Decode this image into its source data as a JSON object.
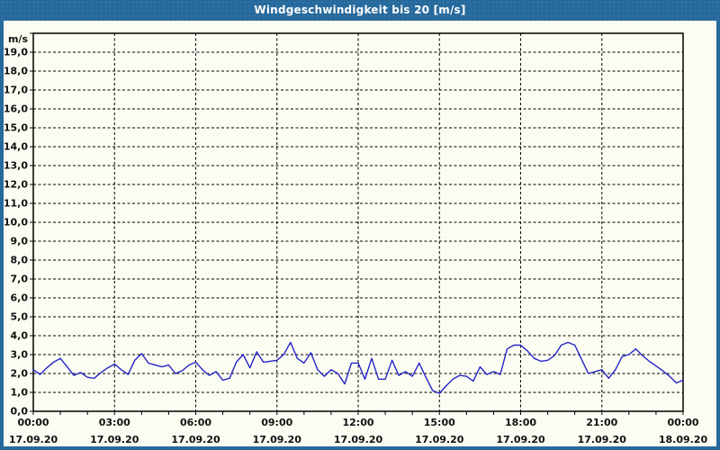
{
  "window": {
    "title": "Windgeschwindigkeit bis 20 [m/s]"
  },
  "colors": {
    "accent_blue": "#26699c",
    "line_blue": "#2525c8",
    "grid_black": "#000000",
    "background": "#fbfcf2",
    "title_text": "#ffffff"
  },
  "chart_data": {
    "type": "line",
    "title": "Windgeschwindigkeit bis 20 [m/s]",
    "ylabel_unit": "m/s",
    "ylim": [
      0,
      20
    ],
    "ytick_step": 1,
    "ytick_labels": [
      "0,0",
      "1,0",
      "2,0",
      "3,0",
      "4,0",
      "5,0",
      "6,0",
      "7,0",
      "8,0",
      "9,0",
      "10,0",
      "11,0",
      "12,0",
      "13,0",
      "14,0",
      "15,0",
      "16,0",
      "17,0",
      "18,0",
      "19,0"
    ],
    "grid": "dashed",
    "x_start_hour": 0,
    "x_step_hours": 0.25,
    "x_total_hours": 24,
    "xticks": [
      {
        "hour": 0,
        "time": "00:00",
        "date": "17.09.20"
      },
      {
        "hour": 3,
        "time": "03:00",
        "date": "17.09.20"
      },
      {
        "hour": 6,
        "time": "06:00",
        "date": "17.09.20"
      },
      {
        "hour": 9,
        "time": "09:00",
        "date": "17.09.20"
      },
      {
        "hour": 12,
        "time": "12:00",
        "date": "17.09.20"
      },
      {
        "hour": 15,
        "time": "15:00",
        "date": "17.09.20"
      },
      {
        "hour": 18,
        "time": "18:00",
        "date": "17.09.20"
      },
      {
        "hour": 21,
        "time": "21:00",
        "date": "17.09.20"
      },
      {
        "hour": 24,
        "time": "00:00",
        "date": "18.09.20"
      }
    ],
    "minor_xtick_every_hours": 1,
    "values": [
      2.2,
      1.95,
      2.3,
      2.6,
      2.8,
      2.35,
      1.9,
      2.05,
      1.8,
      1.75,
      2.05,
      2.3,
      2.5,
      2.2,
      1.95,
      2.7,
      3.05,
      2.55,
      2.45,
      2.35,
      2.45,
      2.0,
      2.15,
      2.45,
      2.6,
      2.2,
      1.9,
      2.1,
      1.65,
      1.75,
      2.6,
      3.0,
      2.3,
      3.15,
      2.6,
      2.65,
      2.7,
      3.0,
      3.65,
      2.8,
      2.55,
      3.1,
      2.2,
      1.85,
      2.2,
      2.0,
      1.45,
      2.55,
      2.55,
      1.7,
      2.8,
      1.7,
      1.7,
      2.7,
      1.9,
      2.1,
      1.85,
      2.55,
      1.8,
      1.1,
      0.95,
      1.35,
      1.7,
      1.9,
      1.85,
      1.6,
      2.35,
      1.95,
      2.1,
      1.95,
      3.3,
      3.5,
      3.5,
      3.2,
      2.8,
      2.65,
      2.7,
      2.95,
      3.5,
      3.65,
      3.5,
      2.75,
      2.0,
      2.1,
      2.2,
      1.75,
      2.2,
      2.9,
      3.0,
      3.3,
      2.95,
      2.65,
      2.4,
      2.15,
      1.85,
      1.5,
      1.65
    ]
  }
}
